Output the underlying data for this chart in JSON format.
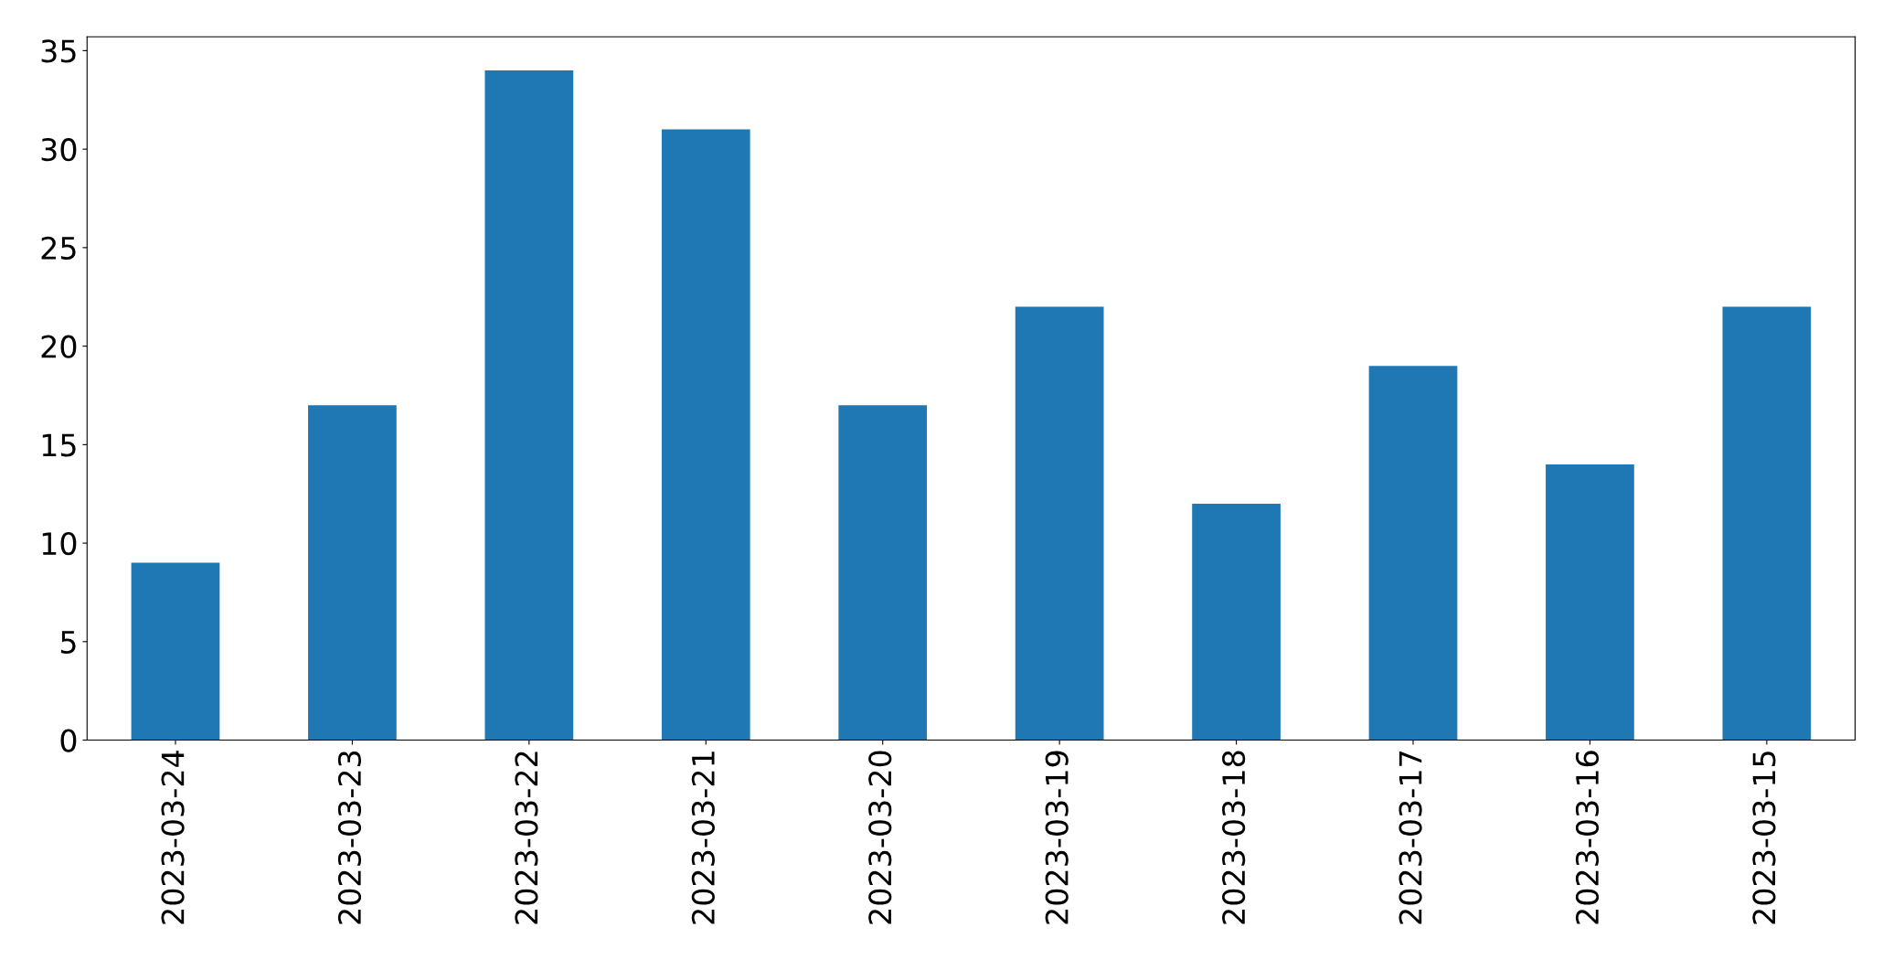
{
  "chart_data": {
    "type": "bar",
    "categories": [
      "2023-03-24",
      "2023-03-23",
      "2023-03-22",
      "2023-03-21",
      "2023-03-20",
      "2023-03-19",
      "2023-03-18",
      "2023-03-17",
      "2023-03-16",
      "2023-03-15"
    ],
    "values": [
      9,
      17,
      34,
      31,
      17,
      22,
      12,
      19,
      14,
      22
    ],
    "color": "#1f77b4",
    "ylim": [
      0,
      35.7
    ],
    "yticks": [
      0,
      5,
      10,
      15,
      20,
      25,
      30,
      35
    ],
    "grid": false,
    "legend": false
  }
}
